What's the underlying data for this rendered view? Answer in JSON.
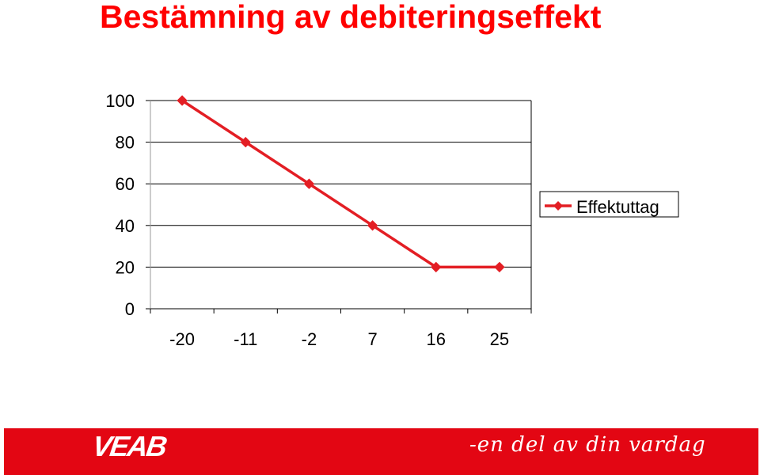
{
  "title": "Bestämning av debiteringseffekt",
  "chart_data": {
    "type": "line",
    "categories": [
      "-20",
      "-11",
      "-2",
      "7",
      "16",
      "25"
    ],
    "series": [
      {
        "name": "Effektuttag",
        "values": [
          100,
          80,
          60,
          40,
          20,
          20
        ]
      }
    ],
    "yticks": [
      "0",
      "20",
      "40",
      "60",
      "80",
      "100"
    ],
    "ylim": [
      0,
      100
    ],
    "grid": true,
    "legend": "right",
    "colors": {
      "series": "#e31e24",
      "gridline": "#000000"
    }
  },
  "footer": {
    "logo": "VEAB",
    "slogan": "-en del av din vardag",
    "background": "#e30613"
  }
}
